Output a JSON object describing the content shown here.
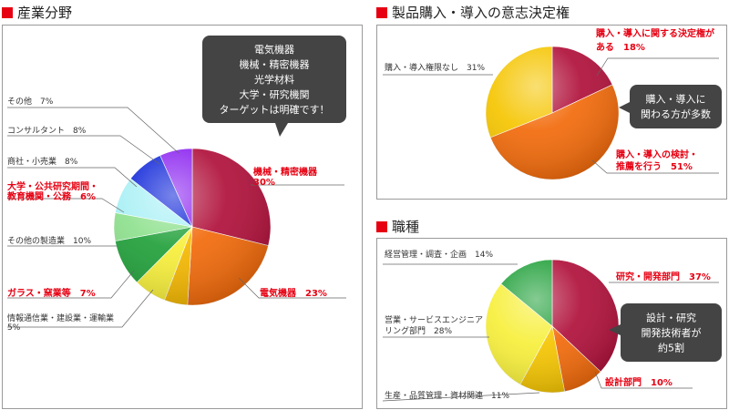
{
  "sections": {
    "industry": {
      "title": "産業分野"
    },
    "purchase": {
      "title": "製品購入・導入の意志決定権"
    },
    "job": {
      "title": "職種"
    }
  },
  "callouts": {
    "industry": [
      "電気機器",
      "機械・精密機器",
      "光学材料",
      "大学・研究機関",
      "ターゲットは明確です！"
    ],
    "purchase": [
      "購入・導入に",
      "関わる方が多数"
    ],
    "job": [
      "設計・研究",
      "開発技術者が",
      "約5割"
    ]
  },
  "chart_data": [
    {
      "type": "pie",
      "title": "産業分野",
      "slices": [
        {
          "label": "機械・精密機器",
          "value": 30,
          "value_text": "30%",
          "color": "#b0103a",
          "highlight": true
        },
        {
          "label": "電気機器",
          "value": 23,
          "value_text": "23%",
          "color": "#f26a0a",
          "highlight": true
        },
        {
          "label": "情報通信業・建設業・運輸業",
          "value": 5,
          "value_text": "5%",
          "color": "#f5b800",
          "highlight": false
        },
        {
          "label": "ガラス・窯業等",
          "value": 7,
          "value_text": "7%",
          "color": "#f7ef3a",
          "highlight": true
        },
        {
          "label": "その他の製造業",
          "value": 10,
          "value_text": "10%",
          "color": "#21a03a",
          "highlight": false
        },
        {
          "label": "大学・公共研究期間・教育機関・公務",
          "value": 6,
          "value_text": "6%",
          "color": "#8de08d",
          "highlight": true
        },
        {
          "label": "商社・小売業",
          "value": 8,
          "value_text": "8%",
          "color": "#a9f0f5",
          "highlight": false
        },
        {
          "label": "コンサルタント",
          "value": 8,
          "value_text": "8%",
          "color": "#0b22d8",
          "highlight": false
        },
        {
          "label": "その他",
          "value": 7,
          "value_text": "7%",
          "color": "#8a22f0",
          "highlight": false
        }
      ]
    },
    {
      "type": "pie",
      "title": "製品購入・導入の意志決定権",
      "slices": [
        {
          "label": "購入・導入に関する決定権がある",
          "value": 18,
          "value_text": "18%",
          "color": "#b0103a",
          "highlight": true
        },
        {
          "label": "購入・導入の検討・推薦を行う",
          "value": 51,
          "value_text": "51%",
          "color": "#f26a0a",
          "highlight": true
        },
        {
          "label": "購入・導入権限なし",
          "value": 31,
          "value_text": "31%",
          "color": "#f5c500",
          "highlight": false
        }
      ]
    },
    {
      "type": "pie",
      "title": "職種",
      "slices": [
        {
          "label": "研究・開発部門",
          "value": 37,
          "value_text": "37%",
          "color": "#b0103a",
          "highlight": true
        },
        {
          "label": "設計部門",
          "value": 10,
          "value_text": "10%",
          "color": "#f26a0a",
          "highlight": true
        },
        {
          "label": "生産・品質管理・資材関連",
          "value": 11,
          "value_text": "11%",
          "color": "#f5c500",
          "highlight": false
        },
        {
          "label": "営業・サービスエンジニアリング部門",
          "value": 28,
          "value_text": "28%",
          "color": "#f7ef3a",
          "highlight": false
        },
        {
          "label": "経営管理・調査・企画",
          "value": 14,
          "value_text": "14%",
          "color": "#21a03a",
          "highlight": false
        }
      ]
    }
  ]
}
